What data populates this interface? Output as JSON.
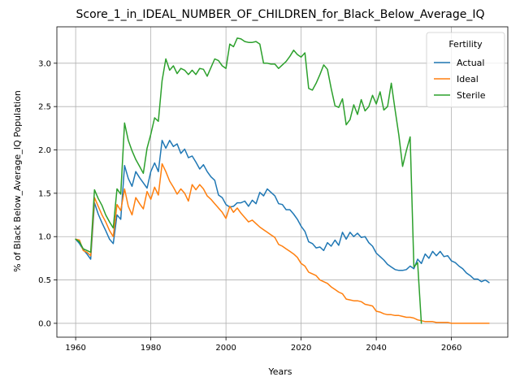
{
  "chart_data": {
    "type": "line",
    "title": "Score_1_in_IDEAL_NUMBER_OF_CHILDREN_for_Black_Below_Average_IQ",
    "xlabel": "Years",
    "ylabel": "% of Black Below_Average_IQ Population",
    "xlim": [
      1955,
      2075
    ],
    "ylim": [
      -0.16,
      3.42
    ],
    "xticks": [
      1960,
      1980,
      2000,
      2020,
      2040,
      2060
    ],
    "yticks": [
      0.0,
      0.5,
      1.0,
      1.5,
      2.0,
      2.5,
      3.0
    ],
    "ytick_labels": [
      "0.0",
      "0.5",
      "1.0",
      "1.5",
      "2.0",
      "2.5",
      "3.0"
    ],
    "grid": true,
    "legend": {
      "title": "Fertility",
      "placement": "top-right"
    },
    "series": [
      {
        "name": "Actual",
        "color": "#1f77b4",
        "x": [
          1960,
          1961,
          1962,
          1963,
          1964,
          1965,
          1966,
          1967,
          1968,
          1969,
          1970,
          1971,
          1972,
          1973,
          1974,
          1975,
          1976,
          1977,
          1978,
          1979,
          1980,
          1981,
          1982,
          1983,
          1984,
          1985,
          1986,
          1987,
          1988,
          1989,
          1990,
          1991,
          1992,
          1993,
          1994,
          1995,
          1996,
          1997,
          1998,
          1999,
          2000,
          2001,
          2002,
          2003,
          2004,
          2005,
          2006,
          2007,
          2008,
          2009,
          2010,
          2011,
          2012,
          2013,
          2014,
          2015,
          2016,
          2017,
          2018,
          2019,
          2020,
          2021,
          2022,
          2023,
          2024,
          2025,
          2026,
          2027,
          2028,
          2029,
          2030,
          2031,
          2032,
          2033,
          2034,
          2035,
          2036,
          2037,
          2038,
          2039,
          2040,
          2041,
          2042,
          2043,
          2044,
          2045,
          2046,
          2047,
          2048,
          2049,
          2050,
          2051,
          2052,
          2053,
          2054,
          2055,
          2056,
          2057,
          2058,
          2059,
          2060,
          2061,
          2062,
          2063,
          2064,
          2065,
          2066,
          2067,
          2068,
          2069,
          2070
        ],
        "values": [
          0.97,
          0.92,
          0.85,
          0.8,
          0.74,
          1.39,
          1.26,
          1.16,
          1.07,
          0.97,
          0.92,
          1.25,
          1.2,
          1.82,
          1.67,
          1.58,
          1.75,
          1.68,
          1.62,
          1.56,
          1.75,
          1.85,
          1.75,
          2.11,
          2.02,
          2.11,
          2.04,
          2.07,
          1.96,
          2.01,
          1.91,
          1.93,
          1.86,
          1.78,
          1.83,
          1.75,
          1.69,
          1.65,
          1.48,
          1.45,
          1.37,
          1.34,
          1.35,
          1.39,
          1.39,
          1.41,
          1.35,
          1.42,
          1.38,
          1.51,
          1.47,
          1.55,
          1.51,
          1.47,
          1.38,
          1.37,
          1.31,
          1.31,
          1.26,
          1.2,
          1.12,
          1.06,
          0.94,
          0.92,
          0.87,
          0.88,
          0.84,
          0.93,
          0.89,
          0.96,
          0.9,
          1.05,
          0.97,
          1.05,
          1.0,
          1.04,
          0.99,
          1.0,
          0.93,
          0.89,
          0.81,
          0.77,
          0.73,
          0.68,
          0.65,
          0.62,
          0.61,
          0.61,
          0.62,
          0.66,
          0.63,
          0.74,
          0.69,
          0.8,
          0.75,
          0.83,
          0.78,
          0.83,
          0.77,
          0.78,
          0.72,
          0.7,
          0.66,
          0.63,
          0.58,
          0.55,
          0.51,
          0.51,
          0.48,
          0.5,
          0.47
        ]
      },
      {
        "name": "Ideal",
        "color": "#ff7f0e",
        "x": [
          1960,
          1961,
          1962,
          1963,
          1964,
          1965,
          1966,
          1967,
          1968,
          1969,
          1970,
          1971,
          1972,
          1973,
          1974,
          1975,
          1976,
          1977,
          1978,
          1979,
          1980,
          1981,
          1982,
          1983,
          1984,
          1985,
          1986,
          1987,
          1988,
          1989,
          1990,
          1991,
          1992,
          1993,
          1994,
          1995,
          1996,
          1997,
          1998,
          1999,
          2000,
          2001,
          2002,
          2003,
          2004,
          2005,
          2006,
          2007,
          2008,
          2009,
          2010,
          2011,
          2012,
          2013,
          2014,
          2015,
          2016,
          2017,
          2018,
          2019,
          2020,
          2021,
          2022,
          2023,
          2024,
          2025,
          2026,
          2027,
          2028,
          2029,
          2030,
          2031,
          2032,
          2033,
          2034,
          2035,
          2036,
          2037,
          2038,
          2039,
          2040,
          2041,
          2042,
          2043,
          2044,
          2045,
          2046,
          2047,
          2048,
          2049,
          2050,
          2051,
          2052,
          2053,
          2054,
          2055,
          2056,
          2057,
          2058,
          2059,
          2060,
          2061,
          2062,
          2063,
          2064,
          2065,
          2066,
          2067,
          2068,
          2069,
          2070
        ],
        "values": [
          0.97,
          0.96,
          0.84,
          0.82,
          0.78,
          1.45,
          1.35,
          1.25,
          1.17,
          1.07,
          1.0,
          1.37,
          1.3,
          1.55,
          1.35,
          1.25,
          1.45,
          1.38,
          1.32,
          1.52,
          1.43,
          1.57,
          1.48,
          1.84,
          1.75,
          1.64,
          1.57,
          1.49,
          1.55,
          1.5,
          1.41,
          1.6,
          1.54,
          1.6,
          1.55,
          1.47,
          1.43,
          1.38,
          1.33,
          1.28,
          1.21,
          1.35,
          1.28,
          1.33,
          1.27,
          1.22,
          1.17,
          1.19,
          1.15,
          1.11,
          1.08,
          1.05,
          1.02,
          0.99,
          0.91,
          0.89,
          0.86,
          0.83,
          0.8,
          0.76,
          0.69,
          0.66,
          0.59,
          0.57,
          0.55,
          0.5,
          0.48,
          0.46,
          0.42,
          0.39,
          0.36,
          0.34,
          0.28,
          0.27,
          0.26,
          0.26,
          0.25,
          0.22,
          0.21,
          0.2,
          0.14,
          0.13,
          0.11,
          0.1,
          0.1,
          0.09,
          0.09,
          0.08,
          0.07,
          0.07,
          0.06,
          0.04,
          0.03,
          0.02,
          0.02,
          0.02,
          0.01,
          0.01,
          0.01,
          0.01,
          0.0,
          0.0,
          0.0,
          0.0,
          0.0,
          0.0,
          0.0,
          0.0,
          0.0,
          0.0,
          0.0
        ]
      },
      {
        "name": "Sterile",
        "color": "#2ca02c",
        "x": [
          1960,
          1961,
          1962,
          1963,
          1964,
          1965,
          1966,
          1967,
          1968,
          1969,
          1970,
          1971,
          1972,
          1973,
          1974,
          1975,
          1976,
          1977,
          1978,
          1979,
          1980,
          1981,
          1982,
          1983,
          1984,
          1985,
          1986,
          1987,
          1988,
          1989,
          1990,
          1991,
          1992,
          1993,
          1994,
          1995,
          1996,
          1997,
          1998,
          1999,
          2000,
          2001,
          2002,
          2003,
          2004,
          2005,
          2006,
          2007,
          2008,
          2009,
          2010,
          2011,
          2012,
          2013,
          2014,
          2015,
          2016,
          2017,
          2018,
          2019,
          2020,
          2021,
          2022,
          2023,
          2024,
          2025,
          2026,
          2027,
          2028,
          2029,
          2030,
          2031,
          2032,
          2033,
          2034,
          2035,
          2036,
          2037,
          2038,
          2039,
          2040,
          2041,
          2042,
          2043,
          2044,
          2045,
          2046,
          2047,
          2048,
          2049,
          2050,
          2051,
          2052
        ],
        "values": [
          0.97,
          0.94,
          0.86,
          0.84,
          0.82,
          1.54,
          1.44,
          1.36,
          1.25,
          1.17,
          1.1,
          1.55,
          1.49,
          2.31,
          2.11,
          1.99,
          1.89,
          1.81,
          1.73,
          2.02,
          2.18,
          2.37,
          2.33,
          2.8,
          3.05,
          2.92,
          2.97,
          2.88,
          2.94,
          2.92,
          2.87,
          2.92,
          2.87,
          2.94,
          2.93,
          2.85,
          2.95,
          3.05,
          3.03,
          2.97,
          2.94,
          3.22,
          3.19,
          3.29,
          3.28,
          3.25,
          3.24,
          3.24,
          3.25,
          3.22,
          3.0,
          3.0,
          2.99,
          2.99,
          2.94,
          2.98,
          3.02,
          3.08,
          3.15,
          3.1,
          3.07,
          3.12,
          2.71,
          2.69,
          2.77,
          2.87,
          2.98,
          2.93,
          2.71,
          2.51,
          2.49,
          2.59,
          2.29,
          2.35,
          2.52,
          2.41,
          2.58,
          2.45,
          2.5,
          2.63,
          2.53,
          2.67,
          2.46,
          2.5,
          2.77,
          2.46,
          2.17,
          1.81,
          1.99,
          2.15,
          0.65,
          0.7,
          0.0
        ]
      }
    ]
  }
}
